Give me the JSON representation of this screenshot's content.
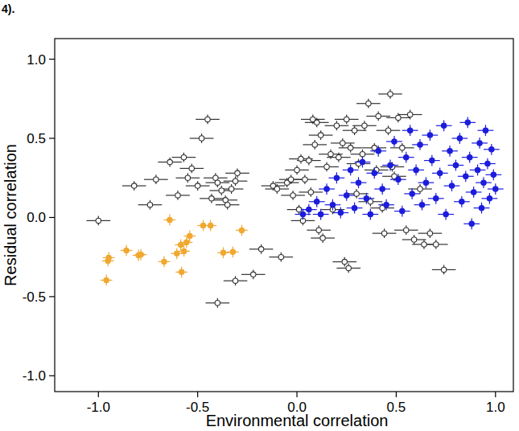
{
  "chart_data": {
    "type": "scatter",
    "annotations": [
      "4)."
    ],
    "x_label": "Environmental correlation",
    "y_label": "Residual correlation",
    "xlim": [
      -1.22,
      1.09
    ],
    "ylim": [
      -1.1,
      1.13
    ],
    "xticks": [
      {
        "value": -1,
        "label": "-1.0"
      },
      {
        "value": -0.5,
        "label": "-0.5"
      },
      {
        "value": 0,
        "label": "0.0"
      },
      {
        "value": 0.5,
        "label": "0.5"
      },
      {
        "value": 1,
        "label": "1.0"
      }
    ],
    "yticks": [
      {
        "value": -1,
        "label": "-1.0"
      },
      {
        "value": -0.5,
        "label": "-0.5"
      },
      {
        "value": 0,
        "label": "0.0"
      },
      {
        "value": 0.5,
        "label": "0.5"
      },
      {
        "value": 1,
        "label": "1.0"
      }
    ],
    "grid": false,
    "series": [
      {
        "color": "#333333",
        "marker": "open-circle",
        "x": [
          -1.0,
          -0.82,
          -0.74,
          -0.71,
          -0.64,
          -0.6,
          -0.57,
          -0.55,
          -0.53,
          -0.5,
          -0.48,
          -0.45,
          -0.43,
          -0.41,
          -0.4,
          -0.38,
          -0.36,
          -0.35,
          -0.33,
          -0.31,
          -0.3,
          -0.4,
          -0.31,
          -0.22,
          -0.18,
          -0.12,
          -0.1,
          -0.08,
          -0.05,
          -0.03,
          -0.02,
          0.0,
          0.01,
          0.02,
          0.03,
          0.04,
          0.06,
          0.07,
          0.08,
          0.09,
          0.1,
          0.11,
          0.12,
          0.13,
          0.15,
          0.17,
          0.18,
          0.2,
          0.21,
          0.23,
          0.24,
          0.25,
          0.26,
          0.27,
          0.29,
          0.3,
          0.31,
          0.33,
          0.34,
          0.36,
          0.37,
          0.39,
          0.4,
          0.41,
          0.43,
          0.44,
          0.46,
          0.47,
          0.49,
          0.51,
          0.53,
          0.55,
          0.57,
          0.59,
          0.62,
          0.64,
          0.67,
          0.7,
          0.74,
          0.48
        ],
        "values": [
          -0.02,
          0.2,
          0.08,
          0.24,
          0.35,
          0.14,
          0.38,
          0.25,
          0.31,
          0.2,
          0.5,
          0.62,
          0.12,
          0.25,
          0.22,
          0.17,
          0.11,
          0.08,
          0.18,
          0.23,
          0.28,
          -0.54,
          -0.4,
          -0.36,
          -0.2,
          0.2,
          0.18,
          -0.25,
          0.22,
          0.24,
          0.14,
          0.3,
          0.05,
          0.37,
          -0.02,
          0.24,
          0.36,
          0.16,
          0.62,
          0.46,
          0.6,
          -0.08,
          0.52,
          -0.13,
          0.32,
          0.4,
          0.05,
          0.58,
          0.38,
          0.47,
          -0.28,
          0.62,
          -0.32,
          0.44,
          0.55,
          0.15,
          0.34,
          0.4,
          0.58,
          0.72,
          0.1,
          0.44,
          0.3,
          0.64,
          0.06,
          -0.1,
          0.55,
          0.78,
          0.26,
          0.63,
          0.44,
          -0.08,
          0.65,
          -0.14,
          0.18,
          -0.17,
          -0.1,
          -0.17,
          -0.33,
          0.32
        ],
        "x_error": 0.06,
        "y_error": 0.03
      },
      {
        "color": "#1c1cdc",
        "marker": "circle",
        "x": [
          0.03,
          0.06,
          0.1,
          0.12,
          0.15,
          0.18,
          0.2,
          0.22,
          0.25,
          0.27,
          0.29,
          0.31,
          0.33,
          0.35,
          0.37,
          0.39,
          0.41,
          0.43,
          0.45,
          0.47,
          0.49,
          0.51,
          0.53,
          0.55,
          0.57,
          0.58,
          0.6,
          0.62,
          0.63,
          0.65,
          0.67,
          0.68,
          0.7,
          0.72,
          0.74,
          0.75,
          0.77,
          0.78,
          0.8,
          0.82,
          0.83,
          0.85,
          0.86,
          0.87,
          0.88,
          0.89,
          0.91,
          0.92,
          0.93,
          0.94,
          0.95,
          0.96,
          0.97,
          0.98,
          0.99,
          1.0
        ],
        "values": [
          0.02,
          0.05,
          0.1,
          0.02,
          0.18,
          0.08,
          0.25,
          0.03,
          0.14,
          0.3,
          0.06,
          0.22,
          0.35,
          0.12,
          0.02,
          0.28,
          0.42,
          0.18,
          0.08,
          0.33,
          0.48,
          0.24,
          0.04,
          0.38,
          0.55,
          0.15,
          0.3,
          0.46,
          0.08,
          0.22,
          0.52,
          0.36,
          0.12,
          0.28,
          0.58,
          0.02,
          0.42,
          0.2,
          0.33,
          0.5,
          0.1,
          0.26,
          0.6,
          0.38,
          -0.04,
          0.16,
          0.3,
          0.47,
          0.06,
          0.22,
          0.55,
          0.34,
          0.12,
          0.43,
          0.27,
          0.18
        ],
        "x_error": 0.04,
        "y_error": 0.035
      },
      {
        "color": "#f0a830",
        "marker": "circle",
        "x": [
          -0.952,
          -0.948,
          -0.96,
          -0.859,
          -0.798,
          -0.786,
          -0.669,
          -0.641,
          -0.605,
          -0.585,
          -0.569,
          -0.556,
          -0.54,
          -0.581,
          -0.472,
          -0.435,
          -0.371,
          -0.323,
          -0.278
        ],
        "values": [
          -0.274,
          -0.254,
          -0.396,
          -0.208,
          -0.239,
          -0.234,
          -0.279,
          -0.015,
          -0.228,
          -0.173,
          -0.213,
          -0.157,
          -0.117,
          -0.345,
          -0.051,
          -0.051,
          -0.223,
          -0.218,
          -0.081
        ],
        "x_error": 0.03,
        "y_error": 0.035
      }
    ]
  }
}
